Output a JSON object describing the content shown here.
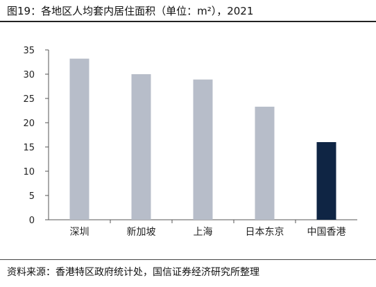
{
  "title": "图19：各地区人均套内居住面积（单位：m²），2021",
  "source": "资料来源：香港特区政府统计处，国信证券经济研究所整理",
  "colors": {
    "bar": "#b7bdc9",
    "highlight": "#0f2544",
    "axis": "#555555"
  },
  "chart_data": {
    "type": "bar",
    "categories": [
      "深圳",
      "新加坡",
      "上海",
      "日本东京",
      "中国香港"
    ],
    "values": [
      33.2,
      30.0,
      28.9,
      23.3,
      16.0
    ],
    "highlight": [
      "中国香港"
    ],
    "title": "图19：各地区人均套内居住面积（单位：m²），2021",
    "xlabel": "",
    "ylabel": "",
    "ylim": [
      0,
      35
    ],
    "yticks": [
      0,
      5,
      10,
      15,
      20,
      25,
      30,
      35
    ],
    "grid": false,
    "legend": "none"
  }
}
